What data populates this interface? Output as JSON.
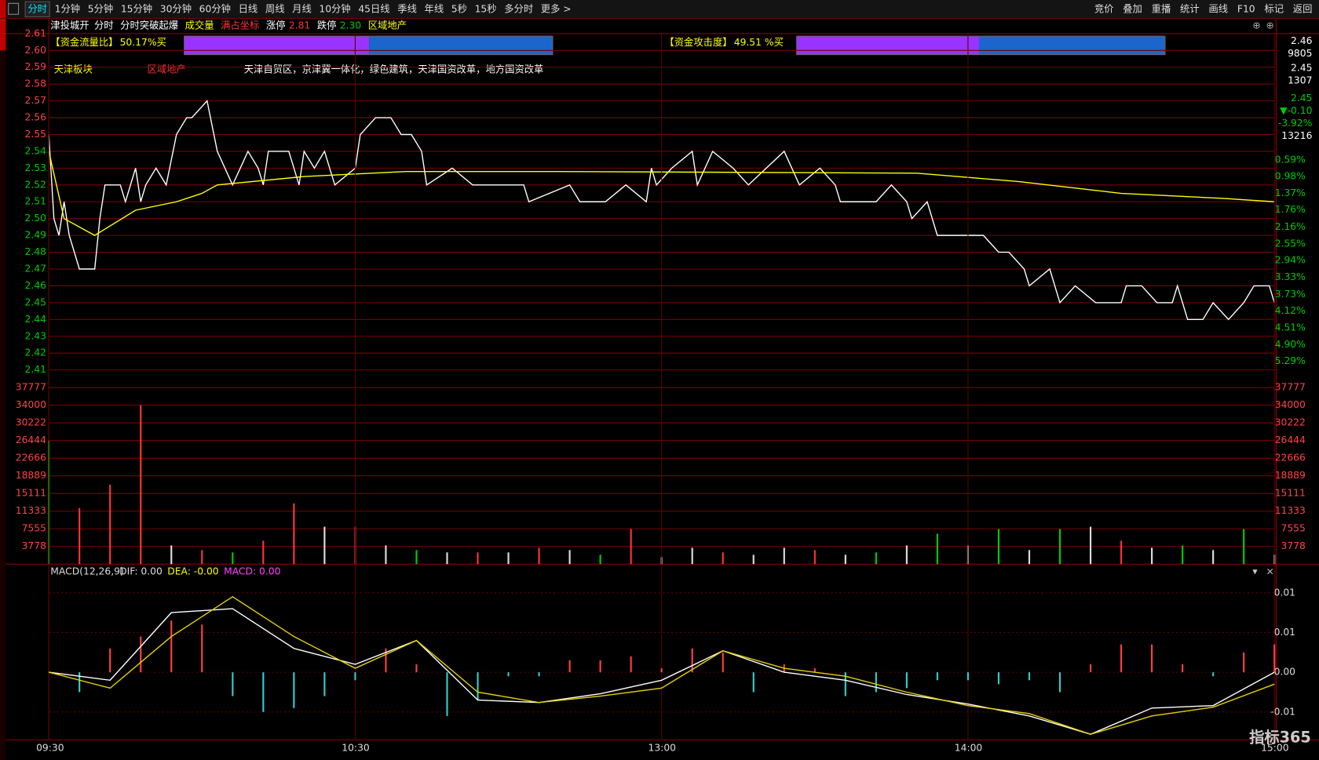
{
  "toolbar": {
    "left": [
      "分时",
      "1分钟",
      "5分钟",
      "15分钟",
      "30分钟",
      "60分钟",
      "日线",
      "周线",
      "月线",
      "10分钟",
      "45日线",
      "季线",
      "年线",
      "5秒",
      "15秒",
      "多分时",
      "更多 >"
    ],
    "right": [
      "竞价",
      "叠加",
      "重播",
      "统计",
      "画线",
      "F10",
      "标记",
      "返回"
    ]
  },
  "info": {
    "stock": "津投城开",
    "items": [
      "分时",
      "分时突破起爆",
      "成交量",
      "满占坐标",
      "涨停",
      "2.81",
      "跌停",
      "2.30",
      "区域地产"
    ]
  },
  "indicators": [
    {
      "label": "【资金流量比】",
      "value": 50.17,
      "value_label": "50.17%买"
    },
    {
      "label": "【资金攻击度】",
      "value": 49.51,
      "value_label": "49.51 %买"
    }
  ],
  "tags": [
    "天津板块",
    "区域地产",
    "天津自贸区，京津冀一体化，绿色建筑，天津国资改革，地方国资改革"
  ],
  "quote": [
    "2.46",
    "9805",
    "2.45",
    "1307",
    "2.45",
    "▼-0.10",
    "-3.92%",
    "13216"
  ],
  "watermark": "指标365",
  "chart_data": [
    {
      "type": "line",
      "xlim": [
        0,
        240
      ],
      "ylim": [
        2.41,
        2.61
      ],
      "yticks": [
        2.61,
        {
          "value": 2.6,
          "label": "2.60"
        },
        2.59,
        2.58,
        2.57,
        2.56,
        2.55,
        2.54,
        2.53,
        2.52,
        2.51,
        {
          "value": 2.5,
          "label": "2.50"
        },
        2.49,
        2.48,
        2.47,
        2.46,
        2.45,
        2.44,
        2.43,
        2.42,
        2.41
      ],
      "y2lim": [
        5.49,
        -2.353
      ],
      "y2ticks": [
        {
          "value": 0.59,
          "label": "0.59%"
        },
        {
          "value": 0.98,
          "label": "0.98%"
        },
        {
          "value": 1.37,
          "label": "1.37%"
        },
        {
          "value": 1.76,
          "label": "1.76%"
        },
        {
          "value": 2.16,
          "label": "2.16%"
        },
        {
          "value": 2.55,
          "label": "2.55%"
        },
        {
          "value": 2.94,
          "label": "2.94%"
        },
        {
          "value": 3.33,
          "label": "3.33%"
        },
        {
          "value": 3.73,
          "label": "3.73%"
        },
        {
          "value": 4.12,
          "label": "4.12%"
        },
        {
          "value": 4.51,
          "label": "4.51%"
        },
        {
          "value": 4.9,
          "label": "4.90%"
        },
        {
          "value": 5.29,
          "label": "5.29%"
        }
      ],
      "x": [
        0,
        1,
        2,
        3,
        4,
        6,
        9,
        10,
        11,
        14,
        15,
        17,
        18,
        19,
        21,
        23,
        25,
        27,
        28,
        31,
        33,
        36,
        39,
        41,
        42,
        43,
        47,
        49,
        50,
        52,
        54,
        56,
        60,
        61,
        64,
        67,
        69,
        71,
        73,
        74,
        79,
        83,
        93,
        94,
        102,
        104,
        109,
        113,
        117,
        118,
        119,
        122,
        126,
        127,
        130,
        134,
        137,
        144,
        147,
        151,
        154,
        155,
        162,
        165,
        168,
        169,
        172,
        174,
        177,
        180,
        183,
        186,
        188,
        191,
        192,
        196,
        198,
        201,
        205,
        210,
        211,
        214,
        217,
        220,
        221,
        223,
        226,
        228,
        231,
        234,
        236,
        239,
        240
      ],
      "series": [
        {
          "color": "#ffffff",
          "values": [
            2.55,
            2.5,
            2.49,
            2.51,
            2.49,
            2.47,
            2.47,
            2.5,
            2.52,
            2.52,
            2.51,
            2.53,
            2.51,
            2.52,
            2.53,
            2.52,
            2.55,
            2.56,
            2.56,
            2.57,
            2.54,
            2.52,
            2.54,
            2.53,
            2.52,
            2.54,
            2.54,
            2.52,
            2.54,
            2.53,
            2.54,
            2.52,
            2.53,
            2.55,
            2.56,
            2.56,
            2.55,
            2.55,
            2.54,
            2.52,
            2.53,
            2.52,
            2.52,
            2.51,
            2.52,
            2.51,
            2.51,
            2.52,
            2.51,
            2.53,
            2.52,
            2.53,
            2.54,
            2.52,
            2.54,
            2.53,
            2.52,
            2.54,
            2.52,
            2.53,
            2.52,
            2.51,
            2.51,
            2.52,
            2.51,
            2.5,
            2.51,
            2.49,
            2.49,
            2.49,
            2.49,
            2.48,
            2.48,
            2.47,
            2.46,
            2.47,
            2.45,
            2.46,
            2.45,
            2.45,
            2.46,
            2.46,
            2.45,
            2.45,
            2.46,
            2.44,
            2.44,
            2.45,
            2.44,
            2.45,
            2.46,
            2.46,
            2.45
          ]
        },
        {
          "color": "#ffff00",
          "x": [
            0,
            3,
            9,
            17,
            25,
            30,
            33,
            50,
            70,
            100,
            170,
            190,
            210,
            230,
            240
          ],
          "values": [
            2.54,
            2.5,
            2.49,
            2.505,
            2.51,
            2.515,
            2.52,
            2.525,
            2.528,
            2.528,
            2.527,
            2.522,
            2.515,
            2.512,
            2.51
          ]
        }
      ]
    },
    {
      "type": "bar",
      "xlim": [
        0,
        240
      ],
      "ylim": [
        0,
        39760
      ],
      "yticks": [
        37777,
        34000,
        30222,
        26444,
        22666,
        18889,
        15111,
        11333,
        7555,
        3778
      ],
      "x": [
        0,
        6,
        12,
        18,
        24,
        30,
        36,
        42,
        48,
        54,
        60,
        66,
        72,
        78,
        84,
        90,
        96,
        102,
        108,
        114,
        120,
        126,
        132,
        138,
        144,
        150,
        156,
        162,
        168,
        174,
        180,
        186,
        192,
        198,
        204,
        210,
        216,
        222,
        228,
        234,
        240
      ],
      "values": [
        26444,
        12000,
        17000,
        34000,
        4000,
        3000,
        2500,
        5000,
        13000,
        8000,
        8000,
        4000,
        3000,
        2500,
        2500,
        2500,
        3500,
        3000,
        2000,
        7500,
        1500,
        3500,
        2500,
        2000,
        3500,
        3000,
        2000,
        2500,
        4000,
        6500,
        4000,
        7500,
        3000,
        7500,
        8000,
        5000,
        3500,
        4000,
        3000,
        7500,
        2000
      ],
      "colors": [
        "#00cc00",
        "#ff3333",
        "#ff3333",
        "#ff3333",
        "#dddddd",
        "#ff3333",
        "#00cc00",
        "#ff3333",
        "#ff3333",
        "#dddddd",
        "#ff3333",
        "#dddddd",
        "#00cc00",
        "#dddddd",
        "#ff3333",
        "#dddddd",
        "#ff3333",
        "#dddddd",
        "#00cc00",
        "#ff3333",
        "#dddddd",
        "#dddddd",
        "#ff3333",
        "#dddddd",
        "#dddddd",
        "#ff3333",
        "#dddddd",
        "#00cc00",
        "#dddddd",
        "#00cc00",
        "#dddddd",
        "#00cc00",
        "#dddddd",
        "#00cc00",
        "#dddddd",
        "#ff3333",
        "#dddddd",
        "#00cc00",
        "#dddddd",
        "#00cc00",
        "#dddddd"
      ]
    },
    {
      "type": "macd",
      "title": "MACD(12,26,9)",
      "labels": [
        "DIF: 0.00",
        "DEA: -0.00",
        "MACD: 0.00"
      ],
      "xlim": [
        0,
        240
      ],
      "ylim": [
        -0.0085,
        0.0135
      ],
      "yticks": [
        {
          "value": 0.01,
          "label": "0.01"
        },
        {
          "value": 0.005,
          "label": "0.01"
        },
        {
          "value": 0,
          "label": "0.00"
        },
        {
          "value": -0.005,
          "label": "-0.01"
        }
      ],
      "xticks": [
        {
          "value": 0,
          "label": "09:30"
        },
        {
          "value": 60,
          "label": "10:30"
        },
        {
          "value": 120,
          "label": "13:00"
        },
        {
          "value": 180,
          "label": "14:00"
        },
        {
          "value": 240,
          "label": "15:00"
        }
      ],
      "x": [
        0,
        12,
        24,
        36,
        48,
        60,
        72,
        84,
        96,
        108,
        120,
        132,
        144,
        156,
        168,
        180,
        192,
        204,
        216,
        228,
        240
      ],
      "series": [
        {
          "color": "#ffffff",
          "values": [
            0,
            -0.001,
            0.0075,
            0.008,
            0.003,
            0.001,
            0.004,
            -0.0035,
            -0.0038,
            -0.0027,
            -0.001,
            0.0027,
            0,
            -0.001,
            -0.0028,
            -0.004,
            -0.0055,
            -0.0078,
            -0.0045,
            -0.0042,
            0
          ]
        },
        {
          "color": "#e6d200",
          "values": [
            0,
            -0.002,
            0.0045,
            0.0095,
            0.0045,
            0.0005,
            0.004,
            -0.0025,
            -0.0038,
            -0.003,
            -0.002,
            0.0027,
            0.0005,
            -0.0005,
            -0.0025,
            -0.0042,
            -0.0052,
            -0.0078,
            -0.0055,
            -0.0044,
            -0.0015
          ]
        },
        {
          "up_color": "#ff4040",
          "down_color": "#33cccc",
          "x": [
            0,
            6,
            12,
            18,
            24,
            30,
            36,
            42,
            48,
            54,
            60,
            66,
            72,
            78,
            84,
            90,
            96,
            102,
            108,
            114,
            120,
            126,
            132,
            138,
            144,
            150,
            156,
            162,
            168,
            174,
            180,
            186,
            192,
            198,
            204,
            210,
            216,
            222,
            228,
            234,
            240
          ],
          "values": [
            0,
            -0.0025,
            0.003,
            0.0045,
            0.0065,
            0.006,
            -0.003,
            -0.005,
            -0.0045,
            -0.003,
            -0.001,
            0.003,
            0.001,
            -0.0055,
            -0.0035,
            -0.0005,
            -0.0005,
            0.0015,
            0.0015,
            0.002,
            0.0005,
            0.003,
            0.0025,
            -0.0025,
            0.001,
            0.0005,
            -0.003,
            -0.0025,
            -0.002,
            -0.001,
            -0.001,
            -0.0015,
            -0.001,
            -0.0025,
            0.001,
            0.0035,
            0.0035,
            0.001,
            -0.0005,
            0.0025,
            0.0035
          ]
        }
      ]
    }
  ]
}
